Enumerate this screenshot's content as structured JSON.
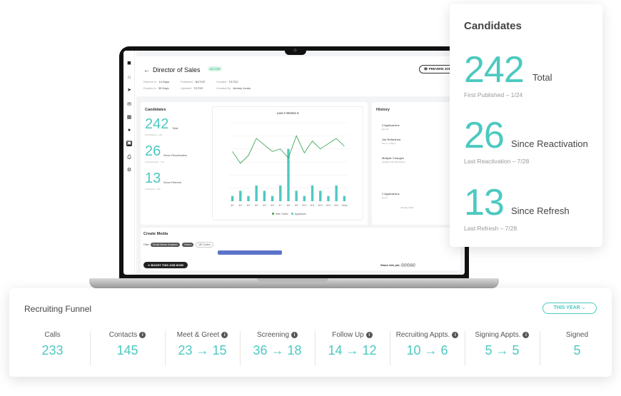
{
  "job": {
    "title": "Director of Sales",
    "status": "ACTIVE",
    "preview_label": "PREVIEW JOB",
    "meta": [
      {
        "k": "Refresh In",
        "v": "14 Days"
      },
      {
        "k": "Expires In",
        "v": "30 Days"
      },
      {
        "k": "Published",
        "v": "8/17/22"
      },
      {
        "k": "Updated",
        "v": "7/17/22"
      },
      {
        "k": "Created",
        "v": "7/17/22"
      },
      {
        "k": "Created By",
        "v": "Jeremy Jones"
      }
    ]
  },
  "mini_candidates": {
    "heading": "Candidates",
    "total": {
      "value": "242",
      "label": "Total",
      "sub": "First Published – 1/24"
    },
    "reactivation": {
      "value": "26",
      "label": "Since Reactivation",
      "sub": "Last Reactivation – 7/28"
    },
    "refresh": {
      "value": "13",
      "label": "Since Refresh",
      "sub": "Last Refresh – 7/28"
    }
  },
  "chart_data": {
    "type": "bar",
    "title": "Last 2 Weeks",
    "categories": [
      "8/1",
      "8/2",
      "8/3",
      "8/4",
      "8/5",
      "8/6",
      "8/7",
      "8/8",
      "8/9",
      "8/10",
      "8/11",
      "8/12",
      "8/13",
      "8/14",
      "Today"
    ],
    "ylim": [
      0,
      60
    ],
    "y2lim": [
      0,
      15
    ],
    "series": [
      {
        "name": "Applicants",
        "type": "bar",
        "axis": "right",
        "values": [
          1,
          2,
          1,
          3,
          2,
          1,
          3,
          10,
          2,
          1,
          3,
          2,
          1,
          3,
          1
        ]
      },
      {
        "name": "Web Traffic",
        "type": "line",
        "axis": "left",
        "values": [
          38,
          29,
          35,
          48,
          43,
          38,
          40,
          33,
          50,
          37,
          46,
          40,
          44,
          48,
          42
        ]
      }
    ],
    "legend": [
      "Web Traffic",
      "Applicants"
    ]
  },
  "history": {
    "heading": "History",
    "items": [
      {
        "title": "3 Applicants",
        "sub": "Dec 31"
      },
      {
        "title": "Job Refreshed",
        "sub": "Dec 4, 1:23pm"
      },
      {
        "title": "Multiple Changes",
        "sub": "Updated Job Description"
      },
      {
        "title": "2 Applicants",
        "sub": "Dec 8"
      }
    ],
    "divider": "January 2023"
  },
  "media": {
    "heading": "Create Media",
    "filter_label": "Filter:",
    "filters": [
      "Social Media Graphics",
      "Videos",
      "QR Codes"
    ],
    "boost_label": "BOOST THIS JOB NOW!",
    "share_label": "Share this job:"
  },
  "candidates_panel": {
    "title": "Candidates",
    "total": {
      "value": "242",
      "label": "Total",
      "sub": "First Published – 1/24"
    },
    "reactivation": {
      "value": "26",
      "label": "Since Reactivation",
      "sub": "Last Reactivation – 7/28"
    },
    "refresh": {
      "value": "13",
      "label": "Since Refresh",
      "sub": "Last Refresh – 7/28"
    }
  },
  "funnel": {
    "title": "Recruiting Funnel",
    "period_button": "THIS YEAR ⌄",
    "stages": [
      {
        "label": "Calls",
        "value": "233",
        "info": false
      },
      {
        "label": "Contacts",
        "value": "145",
        "info": true
      },
      {
        "label": "Meet & Greet",
        "value": "23 → 15",
        "info": true
      },
      {
        "label": "Screening",
        "value": "36 → 18",
        "info": true
      },
      {
        "label": "Follow Up",
        "value": "14 → 12",
        "info": true
      },
      {
        "label": "Recruiting Appts.",
        "value": "10 → 6",
        "info": true
      },
      {
        "label": "Signing Appts.",
        "value": "5 → 5",
        "info": true
      },
      {
        "label": "Signed",
        "value": "5",
        "info": false
      }
    ]
  },
  "colors": {
    "accent": "#4cc9c0",
    "line": "#2e9e46"
  }
}
